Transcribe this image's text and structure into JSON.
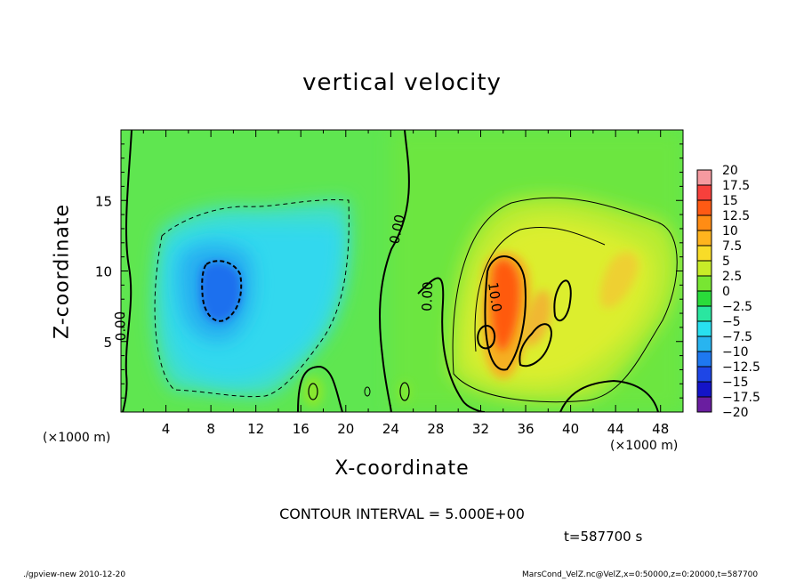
{
  "chart_data": {
    "type": "heatmap",
    "title": "vertical velocity",
    "xlabel": "X-coordinate",
    "ylabel": "Z-coordinate",
    "x_unit": "(×1000 m)",
    "y_unit": "(×1000 m)",
    "xlim": [
      0,
      50
    ],
    "ylim": [
      0,
      20
    ],
    "x_ticks": [
      4,
      8,
      12,
      16,
      20,
      24,
      28,
      32,
      36,
      40,
      44,
      48
    ],
    "y_ticks": [
      5,
      10,
      15
    ],
    "colorbar_levels": [
      "20",
      "17.5",
      "15",
      "12.5",
      "10",
      "7.5",
      "5",
      "2.5",
      "0",
      "-2.5",
      "-5",
      "-7.5",
      "-10",
      "-12.5",
      "-15",
      "-17.5",
      "-20"
    ],
    "contour_labels": [
      "0.00",
      "0.00",
      "0.00",
      "10.0"
    ],
    "contour_interval_note": "CONTOUR INTERVAL = 5.000E+00",
    "time": "t=587700 s",
    "grid": false,
    "legend": "right"
  },
  "footer": {
    "left": "./gpview-new  2010-12-20",
    "right": "MarsCond_VelZ.nc@VelZ,x=0:50000,z=0:20000,t=587700"
  }
}
